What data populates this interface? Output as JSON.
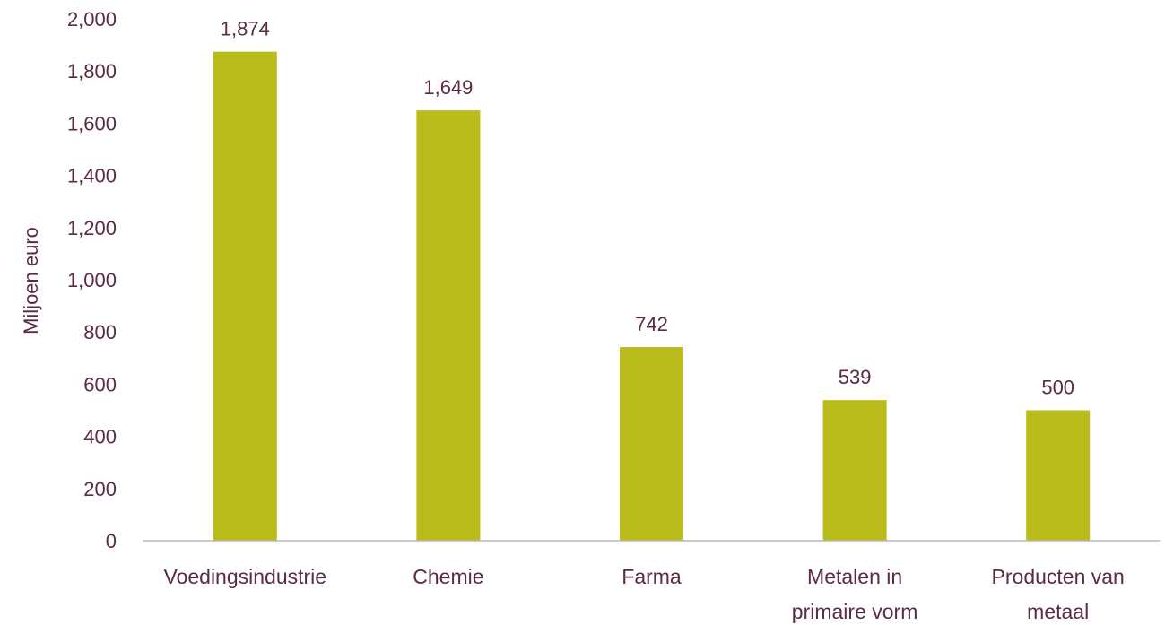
{
  "chart_data": {
    "type": "bar",
    "categories": [
      [
        "Voedingsindustrie"
      ],
      [
        "Chemie"
      ],
      [
        "Farma"
      ],
      [
        "Metalen in",
        "primaire vorm"
      ],
      [
        "Producten van",
        "metaal"
      ]
    ],
    "values": [
      1874,
      1649,
      742,
      539,
      500
    ],
    "value_labels": [
      "1,874",
      "1,649",
      "742",
      "539",
      "500"
    ],
    "ylabel": "Miljoen euro",
    "ylim": [
      0,
      2000
    ],
    "yticks": [
      0,
      200,
      400,
      600,
      800,
      1000,
      1200,
      1400,
      1600,
      1800,
      2000
    ],
    "ytick_labels": [
      "0",
      "200",
      "400",
      "600",
      "800",
      "1,000",
      "1,200",
      "1,400",
      "1,600",
      "1,800",
      "2,000"
    ],
    "grid": false,
    "legend": "none",
    "colors": {
      "bar": "#b9bc1a",
      "text": "#5b2a45",
      "axis": "#b8b8b8"
    }
  }
}
